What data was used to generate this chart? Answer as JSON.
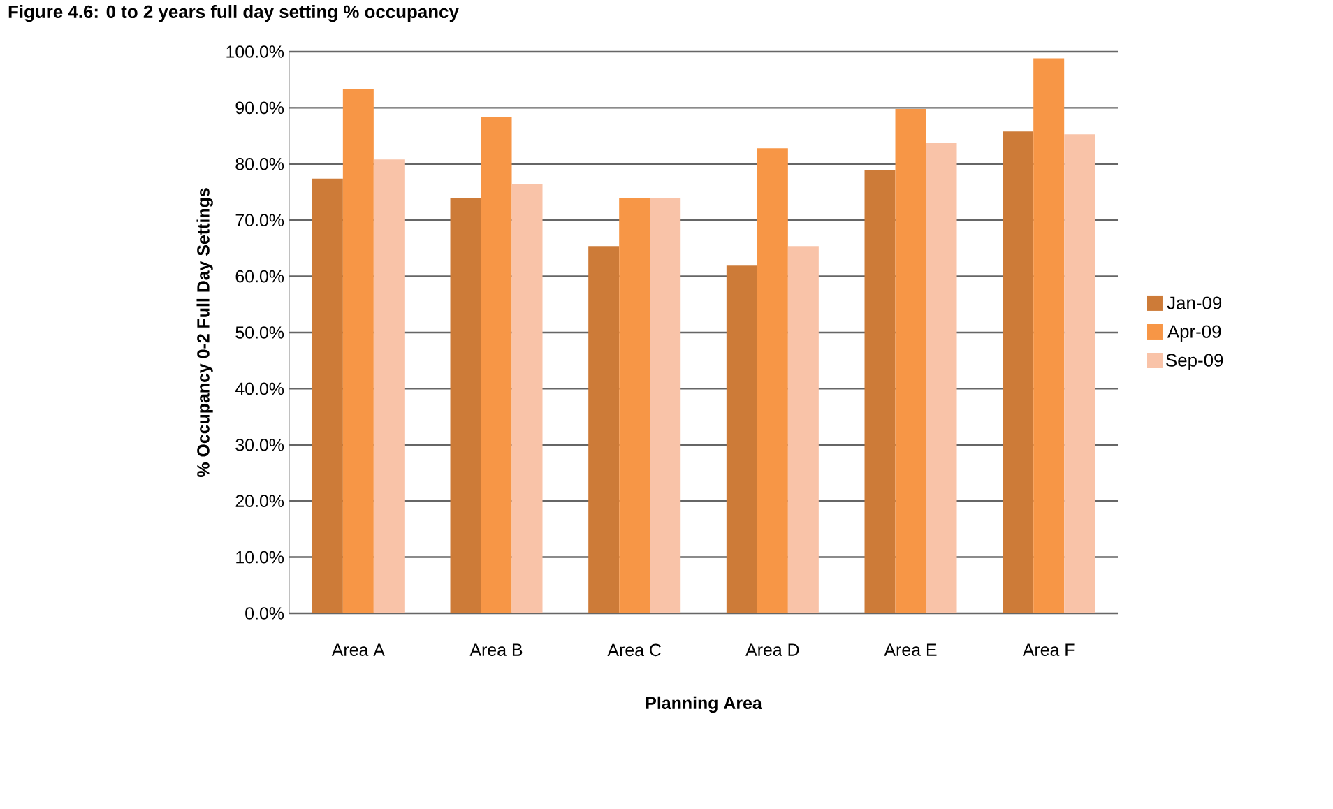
{
  "chart_data": {
    "type": "bar",
    "title": "Figure 4.6: 0 to 2 years full day setting % occupancy",
    "xlabel": "Planning Area",
    "ylabel": "% Occupancy  0-2 Full Day  Settings",
    "categories": [
      "Area A",
      "Area B",
      "Area C",
      "Area D",
      "Area E",
      "Area F"
    ],
    "series": [
      {
        "name": "Jan-09",
        "color": "#cd7b38",
        "values": [
          77.4,
          73.9,
          65.4,
          61.9,
          78.9,
          85.8
        ]
      },
      {
        "name": "Apr-09",
        "color": "#f79646",
        "values": [
          93.3,
          88.3,
          73.9,
          82.8,
          89.8,
          98.8
        ]
      },
      {
        "name": "Sep-09",
        "color": "#f9c3a8",
        "values": [
          80.8,
          76.4,
          73.9,
          65.4,
          83.8,
          85.3
        ]
      }
    ],
    "ylim": [
      0,
      100
    ],
    "yticks": [
      {
        "value": 0,
        "label": "0.0%"
      },
      {
        "value": 10,
        "label": "10.0%"
      },
      {
        "value": 20,
        "label": "20.0%"
      },
      {
        "value": 30,
        "label": "30.0%"
      },
      {
        "value": 40,
        "label": "40.0%"
      },
      {
        "value": 50,
        "label": "50.0%"
      },
      {
        "value": 60,
        "label": "60.0%"
      },
      {
        "value": 70,
        "label": "70.0%"
      },
      {
        "value": 80,
        "label": "80.0%"
      },
      {
        "value": 90,
        "label": "90.0%"
      },
      {
        "value": 100,
        "label": "100.0%"
      }
    ],
    "grid": "y",
    "legend": "right"
  }
}
